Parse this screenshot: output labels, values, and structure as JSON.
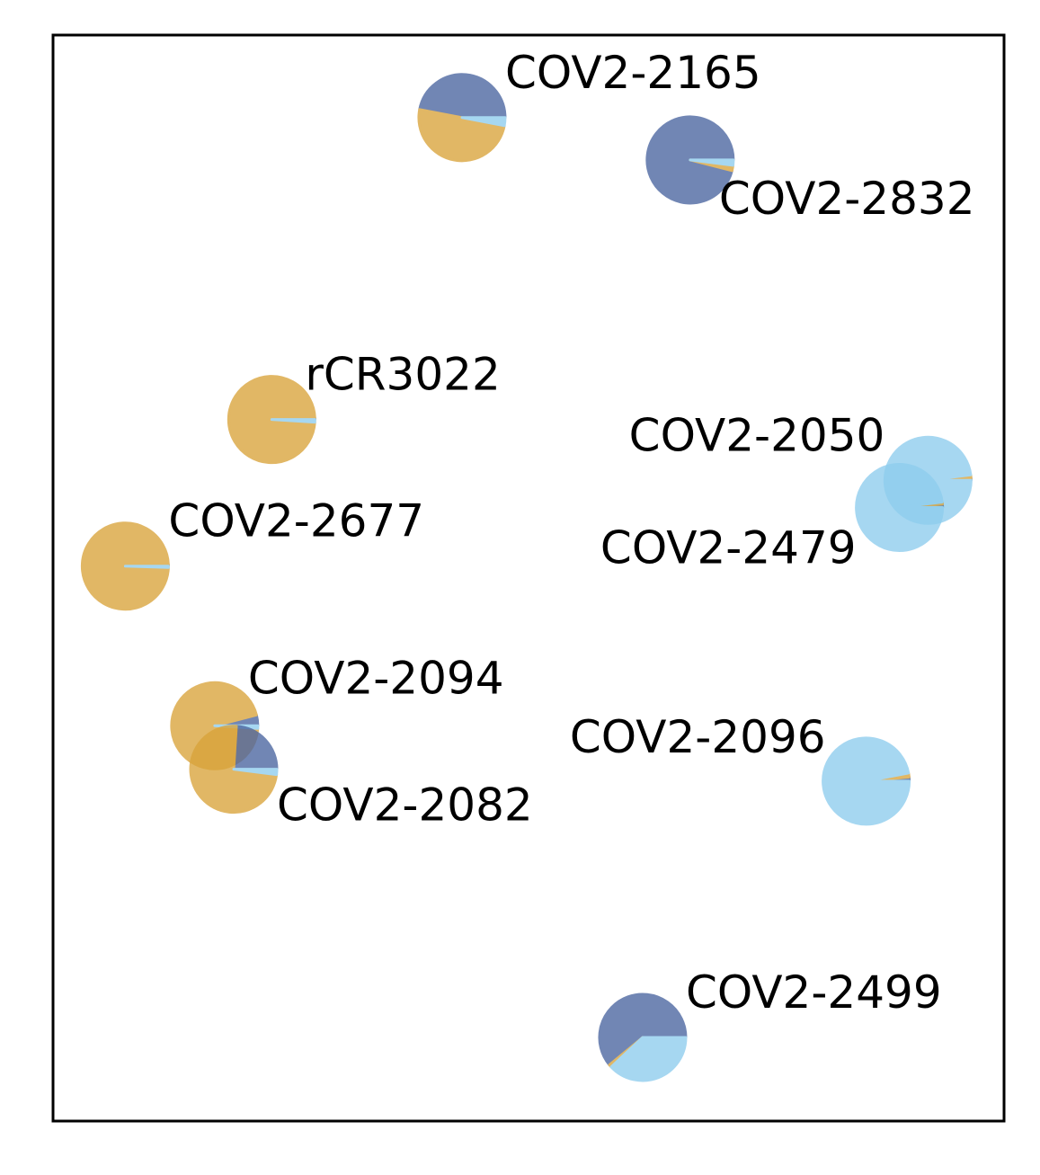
{
  "colors": {
    "dark_blue": "#4a65a0",
    "gold": "#d9a33a",
    "light_blue": "#8ecdee",
    "frame": "#000000"
  },
  "chart_data": {
    "type": "scatter",
    "subtype": "pie-markers",
    "title": "",
    "xlabel": "",
    "ylabel": "",
    "axes_ticks": "none",
    "grid": false,
    "legend": "none",
    "xlim": [
      0,
      100
    ],
    "ylim": [
      0,
      100
    ],
    "slice_categories": [
      "dark_blue",
      "gold",
      "light_blue"
    ],
    "points": [
      {
        "label": "COV2-2165",
        "x": 43,
        "y": 92.4,
        "fractions": [
          0.47,
          0.5,
          0.03
        ]
      },
      {
        "label": "COV2-2832",
        "x": 67,
        "y": 88.5,
        "fractions": [
          0.96,
          0.02,
          0.02
        ]
      },
      {
        "label": "rCR3022",
        "x": 23,
        "y": 64.6,
        "fractions": [
          0.005,
          0.985,
          0.01
        ]
      },
      {
        "label": "COV2-2050",
        "x": 92,
        "y": 59.0,
        "fractions": [
          0.008,
          0.012,
          0.98
        ]
      },
      {
        "label": "COV2-2479",
        "x": 89,
        "y": 56.5,
        "fractions": [
          0.012,
          0.008,
          0.98
        ]
      },
      {
        "label": "COV2-2677",
        "x": 7.6,
        "y": 51.1,
        "fractions": [
          0.005,
          0.99,
          0.005
        ]
      },
      {
        "label": "COV2-2094",
        "x": 17,
        "y": 36.4,
        "fractions": [
          0.04,
          0.95,
          0.01
        ]
      },
      {
        "label": "COV2-2082",
        "x": 19,
        "y": 32.4,
        "fractions": [
          0.24,
          0.74,
          0.02
        ]
      },
      {
        "label": "COV2-2096",
        "x": 85.5,
        "y": 31.3,
        "fractions": [
          0.015,
          0.015,
          0.97
        ]
      },
      {
        "label": "COV2-2499",
        "x": 62,
        "y": 7.7,
        "fractions": [
          0.61,
          0.01,
          0.38
        ]
      }
    ]
  }
}
